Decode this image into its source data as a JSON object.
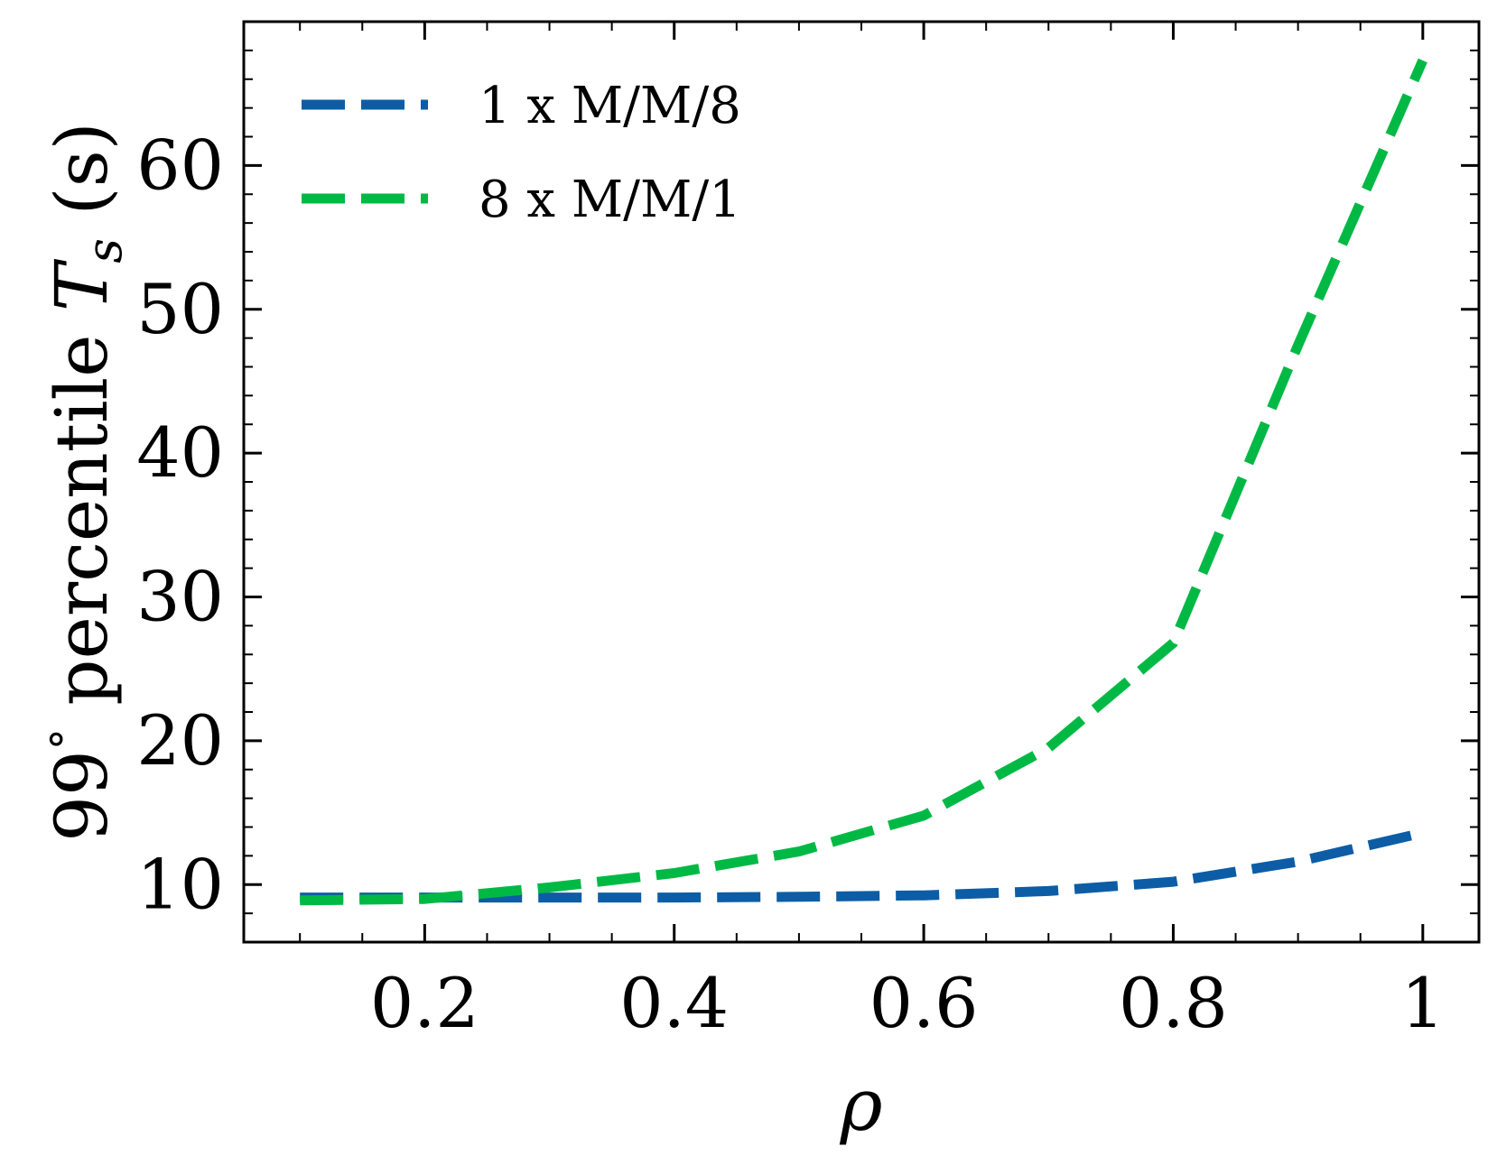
{
  "chart_data": {
    "type": "line",
    "title": "",
    "xlabel": "ρ",
    "ylabel": {
      "prefix": "99",
      "degree": "°",
      "middle": " percentile ",
      "symbol": "T",
      "subscript": "s",
      "unit": " (s)"
    },
    "xlim": [
      0.055,
      1.045
    ],
    "ylim": [
      6,
      70
    ],
    "xticks": [
      0.2,
      0.4,
      0.6,
      0.8,
      1.0
    ],
    "xtick_labels": [
      "0.2",
      "0.4",
      "0.6",
      "0.8",
      "1"
    ],
    "yticks": [
      10,
      20,
      30,
      40,
      50,
      60
    ],
    "ytick_labels": [
      "10",
      "20",
      "30",
      "40",
      "50",
      "60"
    ],
    "grid": false,
    "legend": "top-left",
    "x": [
      0.1,
      0.2,
      0.3,
      0.4,
      0.5,
      0.6,
      0.7,
      0.8,
      0.9,
      1.0
    ],
    "series": [
      {
        "name": "1 x M/M/8",
        "color": "#0C5DA5",
        "style": "dashed",
        "values": [
          9.1,
          9.1,
          9.1,
          9.1,
          9.15,
          9.25,
          9.55,
          10.2,
          11.6,
          13.6
        ]
      },
      {
        "name": "8 x M/M/1",
        "color": "#00B945",
        "style": "dashed",
        "values": [
          8.9,
          9.0,
          9.8,
          10.8,
          12.3,
          14.8,
          19.5,
          26.8,
          47.5,
          67.3
        ]
      }
    ]
  }
}
